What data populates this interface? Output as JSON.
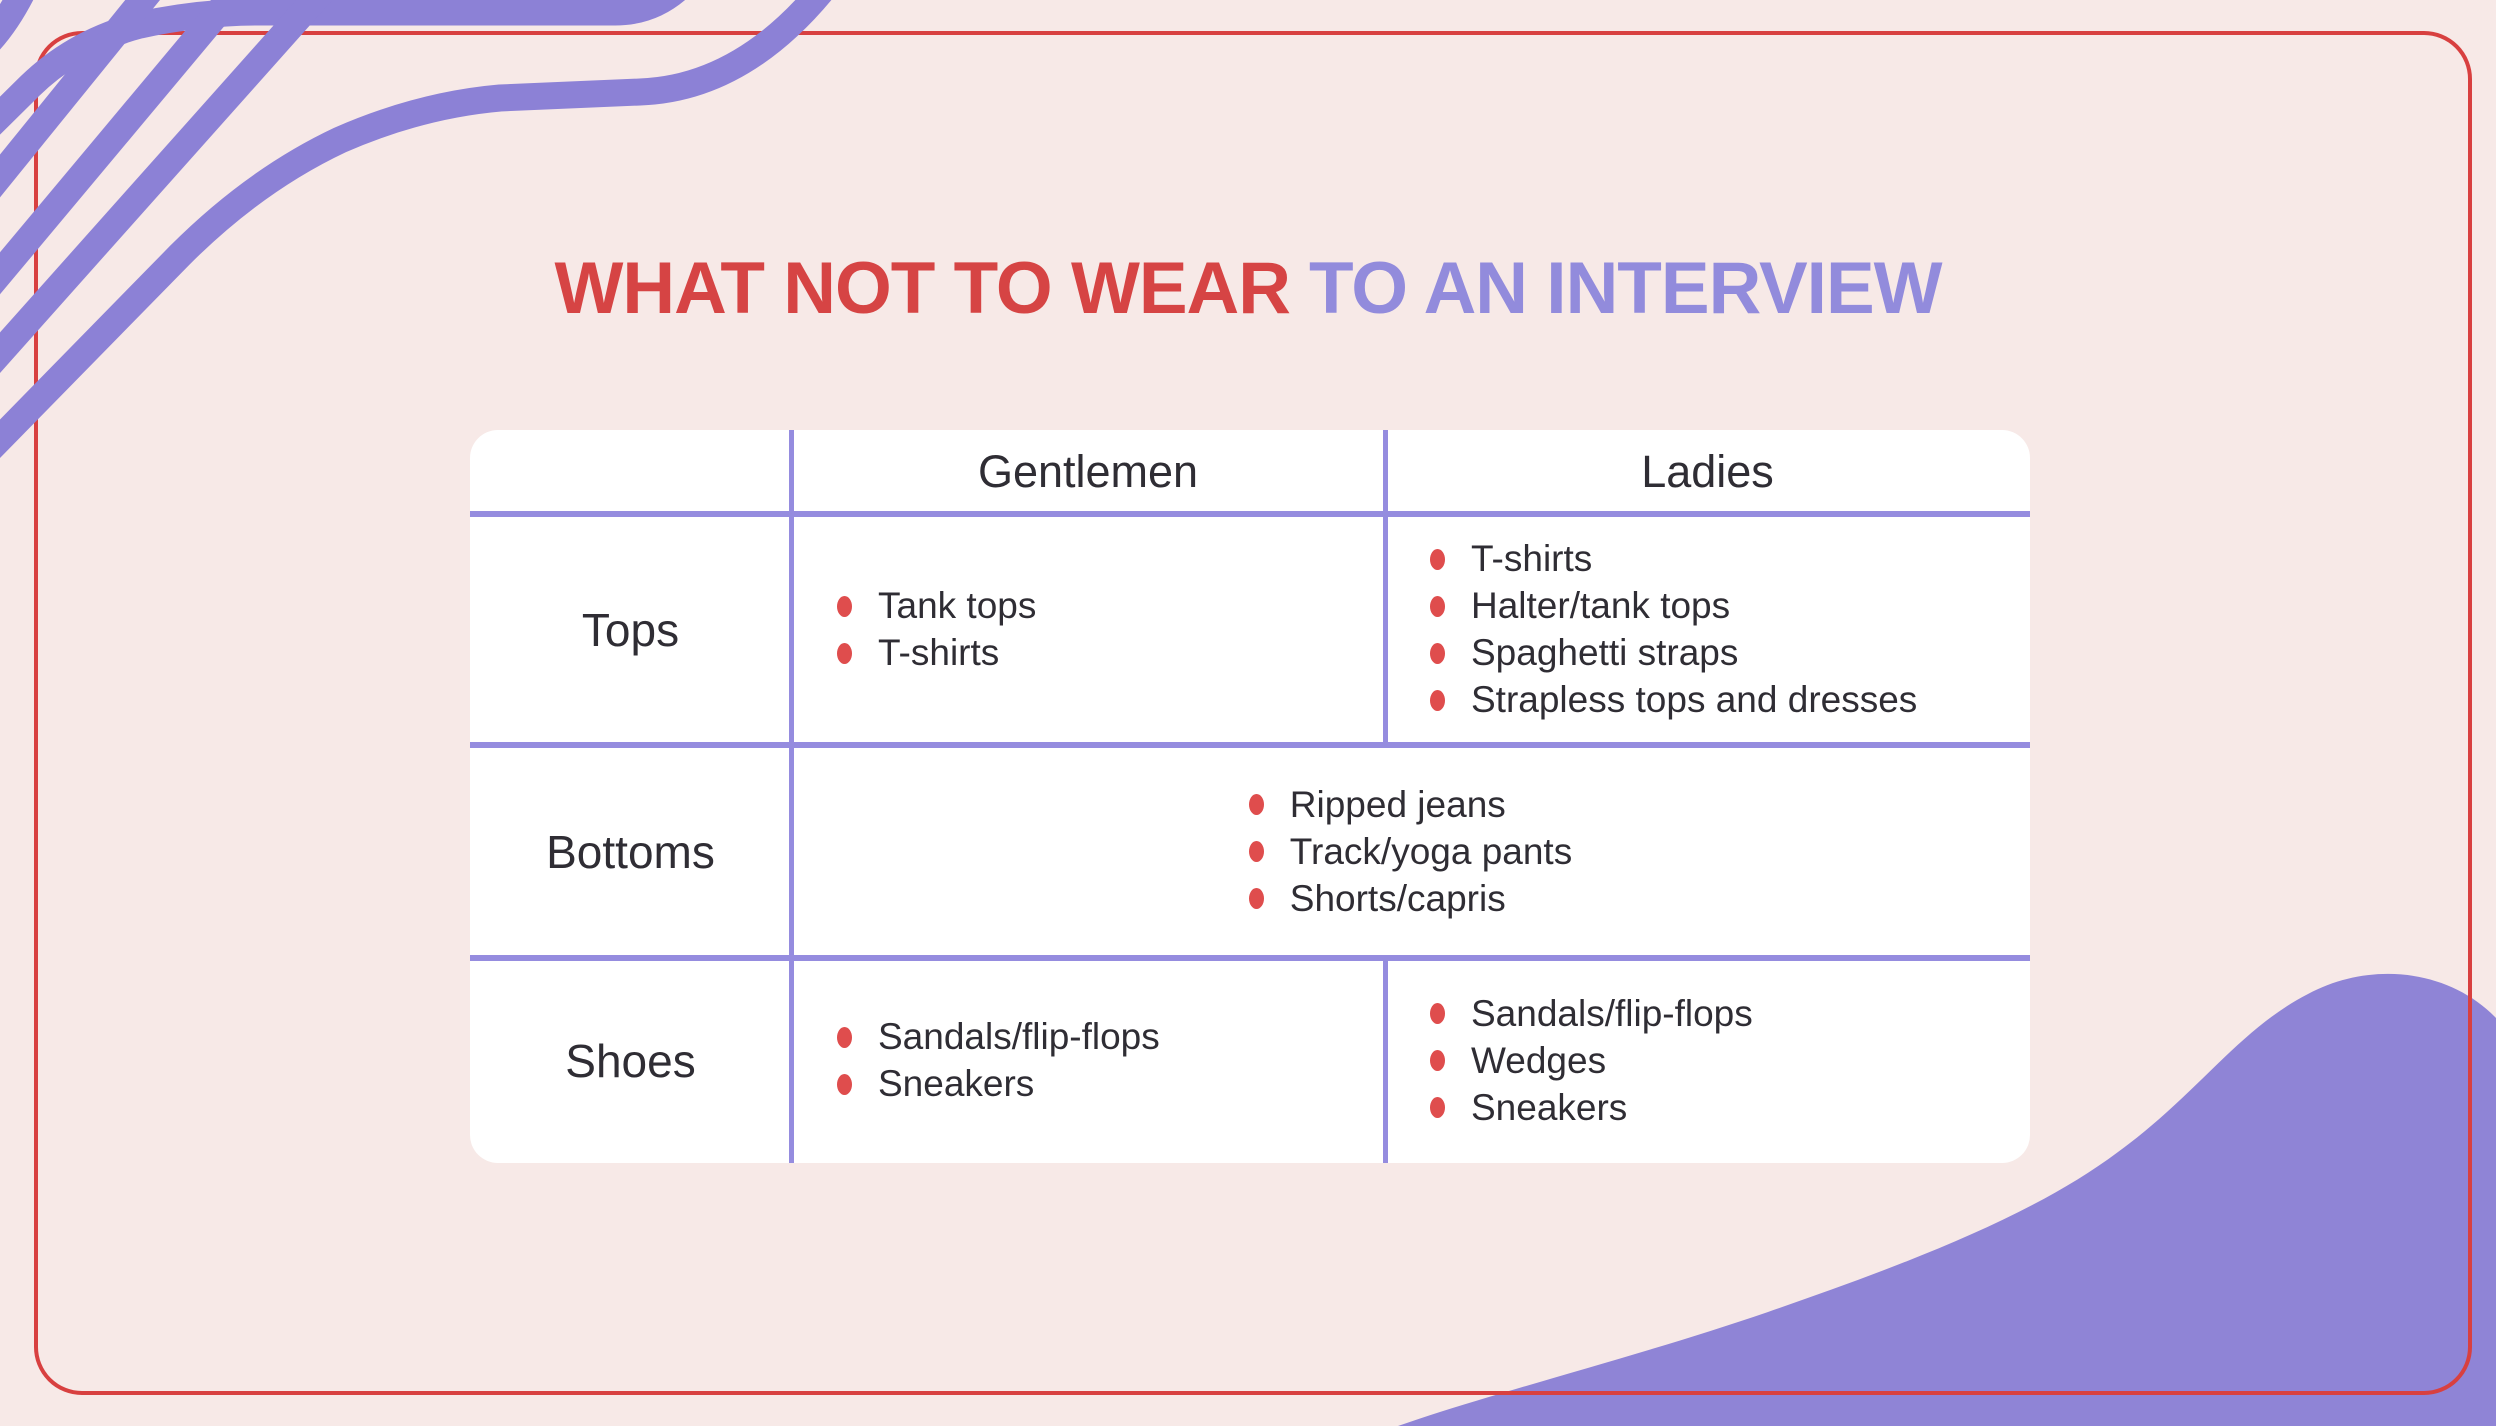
{
  "title": {
    "red_part": "WHAT NOT TO WEAR",
    "purple_part": "TO AN INTERVIEW"
  },
  "table": {
    "columns": [
      "",
      "Gentlemen",
      "Ladies"
    ],
    "rows": [
      {
        "label": "Tops",
        "gentlemen": [
          "Tank tops",
          "T-shirts"
        ],
        "ladies": [
          "T-shirts",
          "Halter/tank tops",
          "Spaghetti straps",
          "Strapless tops and dresses"
        ]
      },
      {
        "label": "Bottoms",
        "merged": [
          "Ripped jeans",
          "Track/yoga pants",
          "Shorts/capris"
        ]
      },
      {
        "label": "Shoes",
        "gentlemen": [
          "Sandals/flip-flops",
          "Sneakers"
        ],
        "ladies": [
          "Sandals/flip-flops",
          "Wedges",
          "Sneakers"
        ]
      }
    ]
  },
  "colors": {
    "background": "#f7e9e7",
    "purple": "#8c81d6",
    "blob_purple": "#8f84d6",
    "red_frame": "#d84040",
    "title_red": "#d64444",
    "title_purple": "#928bdc",
    "bullet_red": "#df4d4d",
    "text_dark": "#2f2d34",
    "table_border": "#958cdf",
    "card_white": "#ffffff"
  }
}
